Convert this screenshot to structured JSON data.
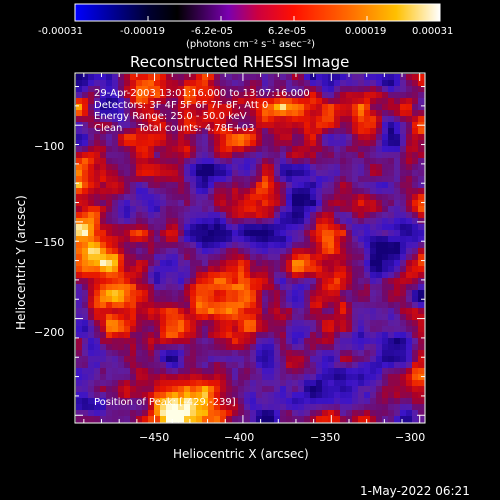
{
  "colorbar": {
    "tick_labels": [
      "-0.00031",
      "-0.00019",
      "-6.2e-05",
      "6.2e-05",
      "0.00019",
      "0.00031"
    ],
    "units_label": "(photons cm⁻² s⁻¹ asec⁻²)",
    "colors": [
      "#0000ff",
      "#000000",
      "#8a00c8",
      "#ff0000",
      "#ffaa00",
      "#ffffff"
    ]
  },
  "image": {
    "title": "Reconstructed RHESSI Image",
    "annotations": {
      "time_range": "29-Apr-2003 13:01:16.000 to 13:07:16.000",
      "detectors": "Detectors: 3F 4F 5F 6F 7F 8F, Att 0",
      "energy": "Energy Range: 25.0 - 50.0 keV",
      "clean": "Clean     Total counts: 4.78E+03",
      "peak": "Position of Peak: [-429,-239]"
    }
  },
  "axes": {
    "xlabel": "Heliocentric X (arcsec)",
    "ylabel": "Heliocentric Y (arcsec)",
    "x_ticks": [
      "−450",
      "−400",
      "−350",
      "−300"
    ],
    "y_ticks": [
      "−100",
      "−150",
      "−200"
    ],
    "xlim": [
      -495,
      -297
    ],
    "ylim": [
      -254,
      -73
    ]
  },
  "footer": {
    "timestamp": "1-May-2022 06:21"
  }
}
